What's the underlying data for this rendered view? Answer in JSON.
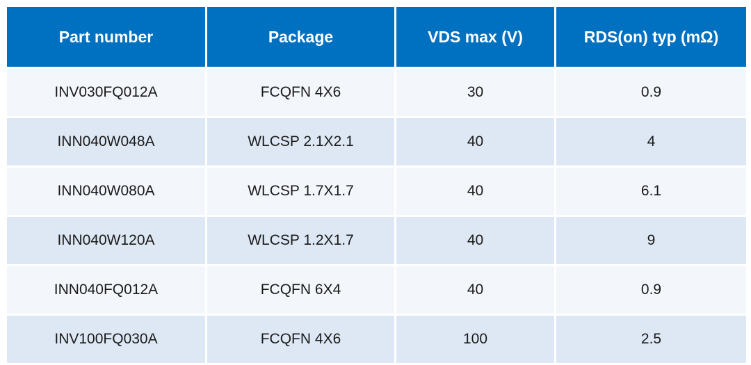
{
  "table": {
    "headers": [
      "Part number",
      "Package",
      "VDS max (V)",
      "RDS(on) typ (mΩ)"
    ],
    "rows": [
      [
        "INV030FQ012A",
        "FCQFN 4X6",
        "30",
        "0.9"
      ],
      [
        "INN040W048A",
        "WLCSP 2.1X2.1",
        "40",
        "4"
      ],
      [
        "INN040W080A",
        "WLCSP 1.7X1.7",
        "40",
        "6.1"
      ],
      [
        "INN040W120A",
        "WLCSP 1.2X1.7",
        "40",
        "9"
      ],
      [
        "INN040FQ012A",
        "FCQFN 6X4",
        "40",
        "0.9"
      ],
      [
        "INV100FQ030A",
        "FCQFN 4X6",
        "100",
        "2.5"
      ]
    ]
  },
  "colors": {
    "header_bg": "#0070c0",
    "header_text": "#ffffff",
    "row_light": "#f3f6fb",
    "row_dark": "#dde8f4"
  }
}
